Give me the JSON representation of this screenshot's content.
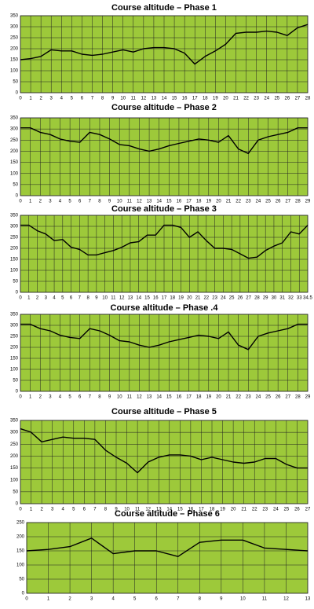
{
  "chart_data": [
    {
      "type": "line",
      "title": "Course altitude – Phase 1",
      "categories": [
        "0",
        "1",
        "2",
        "3",
        "4",
        "5",
        "6",
        "7",
        "8",
        "9",
        "10",
        "11",
        "12",
        "13",
        "14",
        "15",
        "16",
        "17",
        "18",
        "19",
        "20",
        "21",
        "22",
        "23",
        "24",
        "25",
        "26",
        "27",
        "28"
      ],
      "values": [
        150,
        155,
        165,
        195,
        190,
        190,
        175,
        170,
        175,
        185,
        195,
        185,
        200,
        205,
        205,
        200,
        180,
        130,
        165,
        190,
        220,
        270,
        275,
        275,
        280,
        275,
        260,
        295,
        310
      ],
      "color": "#000000",
      "ylim": [
        0,
        350
      ],
      "yticks": [
        0,
        50,
        100,
        150,
        200,
        250,
        300,
        350
      ],
      "grid": true
    },
    {
      "type": "line",
      "title": "Course altitude – Phase 2",
      "categories": [
        "0",
        "1",
        "2",
        "3",
        "4",
        "5",
        "6",
        "7",
        "8",
        "9",
        "10",
        "11",
        "12",
        "13",
        "14",
        "15",
        "16",
        "17",
        "18",
        "19",
        "20",
        "21",
        "22",
        "23",
        "24",
        "25",
        "26",
        "27",
        "28",
        "29"
      ],
      "values": [
        305,
        305,
        285,
        275,
        255,
        245,
        240,
        285,
        275,
        255,
        230,
        225,
        210,
        200,
        210,
        225,
        235,
        245,
        255,
        250,
        240,
        270,
        210,
        190,
        250,
        265,
        275,
        285,
        305,
        305
      ],
      "color": "#000000",
      "ylim": [
        0,
        350
      ],
      "yticks": [
        0,
        50,
        100,
        150,
        200,
        250,
        300,
        350
      ],
      "grid": true
    },
    {
      "type": "line",
      "title": "Course altitude – Phase 3",
      "categories": [
        "0",
        "1",
        "2",
        "3",
        "4",
        "5",
        "6",
        "7",
        "8",
        "9",
        "10",
        "11",
        "12",
        "13",
        "14",
        "15",
        "16",
        "17",
        "18",
        "19",
        "20",
        "21",
        "22",
        "23",
        "24",
        "25",
        "26",
        "27",
        "28",
        "29",
        "30",
        "31",
        "32",
        "33",
        "34.5"
      ],
      "values": [
        305,
        305,
        280,
        265,
        235,
        240,
        205,
        195,
        170,
        170,
        180,
        190,
        205,
        225,
        230,
        260,
        260,
        305,
        305,
        295,
        250,
        275,
        235,
        200,
        200,
        195,
        175,
        155,
        160,
        190,
        210,
        225,
        275,
        265,
        305
      ],
      "color": "#000000",
      "ylim": [
        0,
        350
      ],
      "yticks": [
        0,
        50,
        100,
        150,
        200,
        250,
        300,
        350
      ],
      "grid": true
    },
    {
      "type": "line",
      "title": "Course altitude – Phase .4",
      "categories": [
        "0",
        "1",
        "2",
        "3",
        "4",
        "5",
        "6",
        "7",
        "8",
        "9",
        "10",
        "11",
        "12",
        "13",
        "14",
        "15",
        "16",
        "17",
        "18",
        "19",
        "20",
        "21",
        "22",
        "23",
        "24",
        "25",
        "26",
        "27",
        "28",
        "29"
      ],
      "values": [
        305,
        305,
        285,
        275,
        255,
        245,
        240,
        285,
        275,
        255,
        230,
        225,
        210,
        200,
        210,
        225,
        235,
        245,
        255,
        250,
        240,
        270,
        210,
        190,
        250,
        265,
        275,
        285,
        305,
        305
      ],
      "color": "#000000",
      "ylim": [
        0,
        350
      ],
      "yticks": [
        0,
        50,
        100,
        150,
        200,
        250,
        300,
        350
      ],
      "grid": true
    },
    {
      "type": "line",
      "title": "Course altitude – Phase 5",
      "categories": [
        "0",
        "1",
        "2",
        "3",
        "4",
        "5",
        "6",
        "7",
        "8",
        "9",
        "10",
        "11",
        "12",
        "13",
        "14",
        "15",
        "16",
        "17",
        "18",
        "19",
        "20",
        "21",
        "22",
        "23",
        "24",
        "25",
        "26",
        "27"
      ],
      "values": [
        315,
        300,
        260,
        270,
        280,
        275,
        275,
        270,
        225,
        195,
        170,
        130,
        175,
        195,
        205,
        205,
        200,
        185,
        195,
        185,
        175,
        170,
        175,
        190,
        190,
        165,
        150,
        150
      ],
      "color": "#000000",
      "ylim": [
        0,
        350
      ],
      "yticks": [
        0,
        50,
        100,
        150,
        200,
        250,
        300,
        350
      ],
      "grid": true
    },
    {
      "type": "line",
      "title": "Course altitude – Phase 6",
      "categories": [
        "0",
        "1",
        "2",
        "3",
        "4",
        "5",
        "6",
        "7",
        "8",
        "9",
        "10",
        "11",
        "12",
        "13"
      ],
      "values": [
        150,
        155,
        165,
        195,
        140,
        150,
        150,
        130,
        180,
        188,
        188,
        160,
        155,
        150
      ],
      "color": "#000000",
      "ylim": [
        0,
        250
      ],
      "yticks": [
        0,
        50,
        100,
        150,
        200,
        250
      ],
      "grid": true
    }
  ]
}
